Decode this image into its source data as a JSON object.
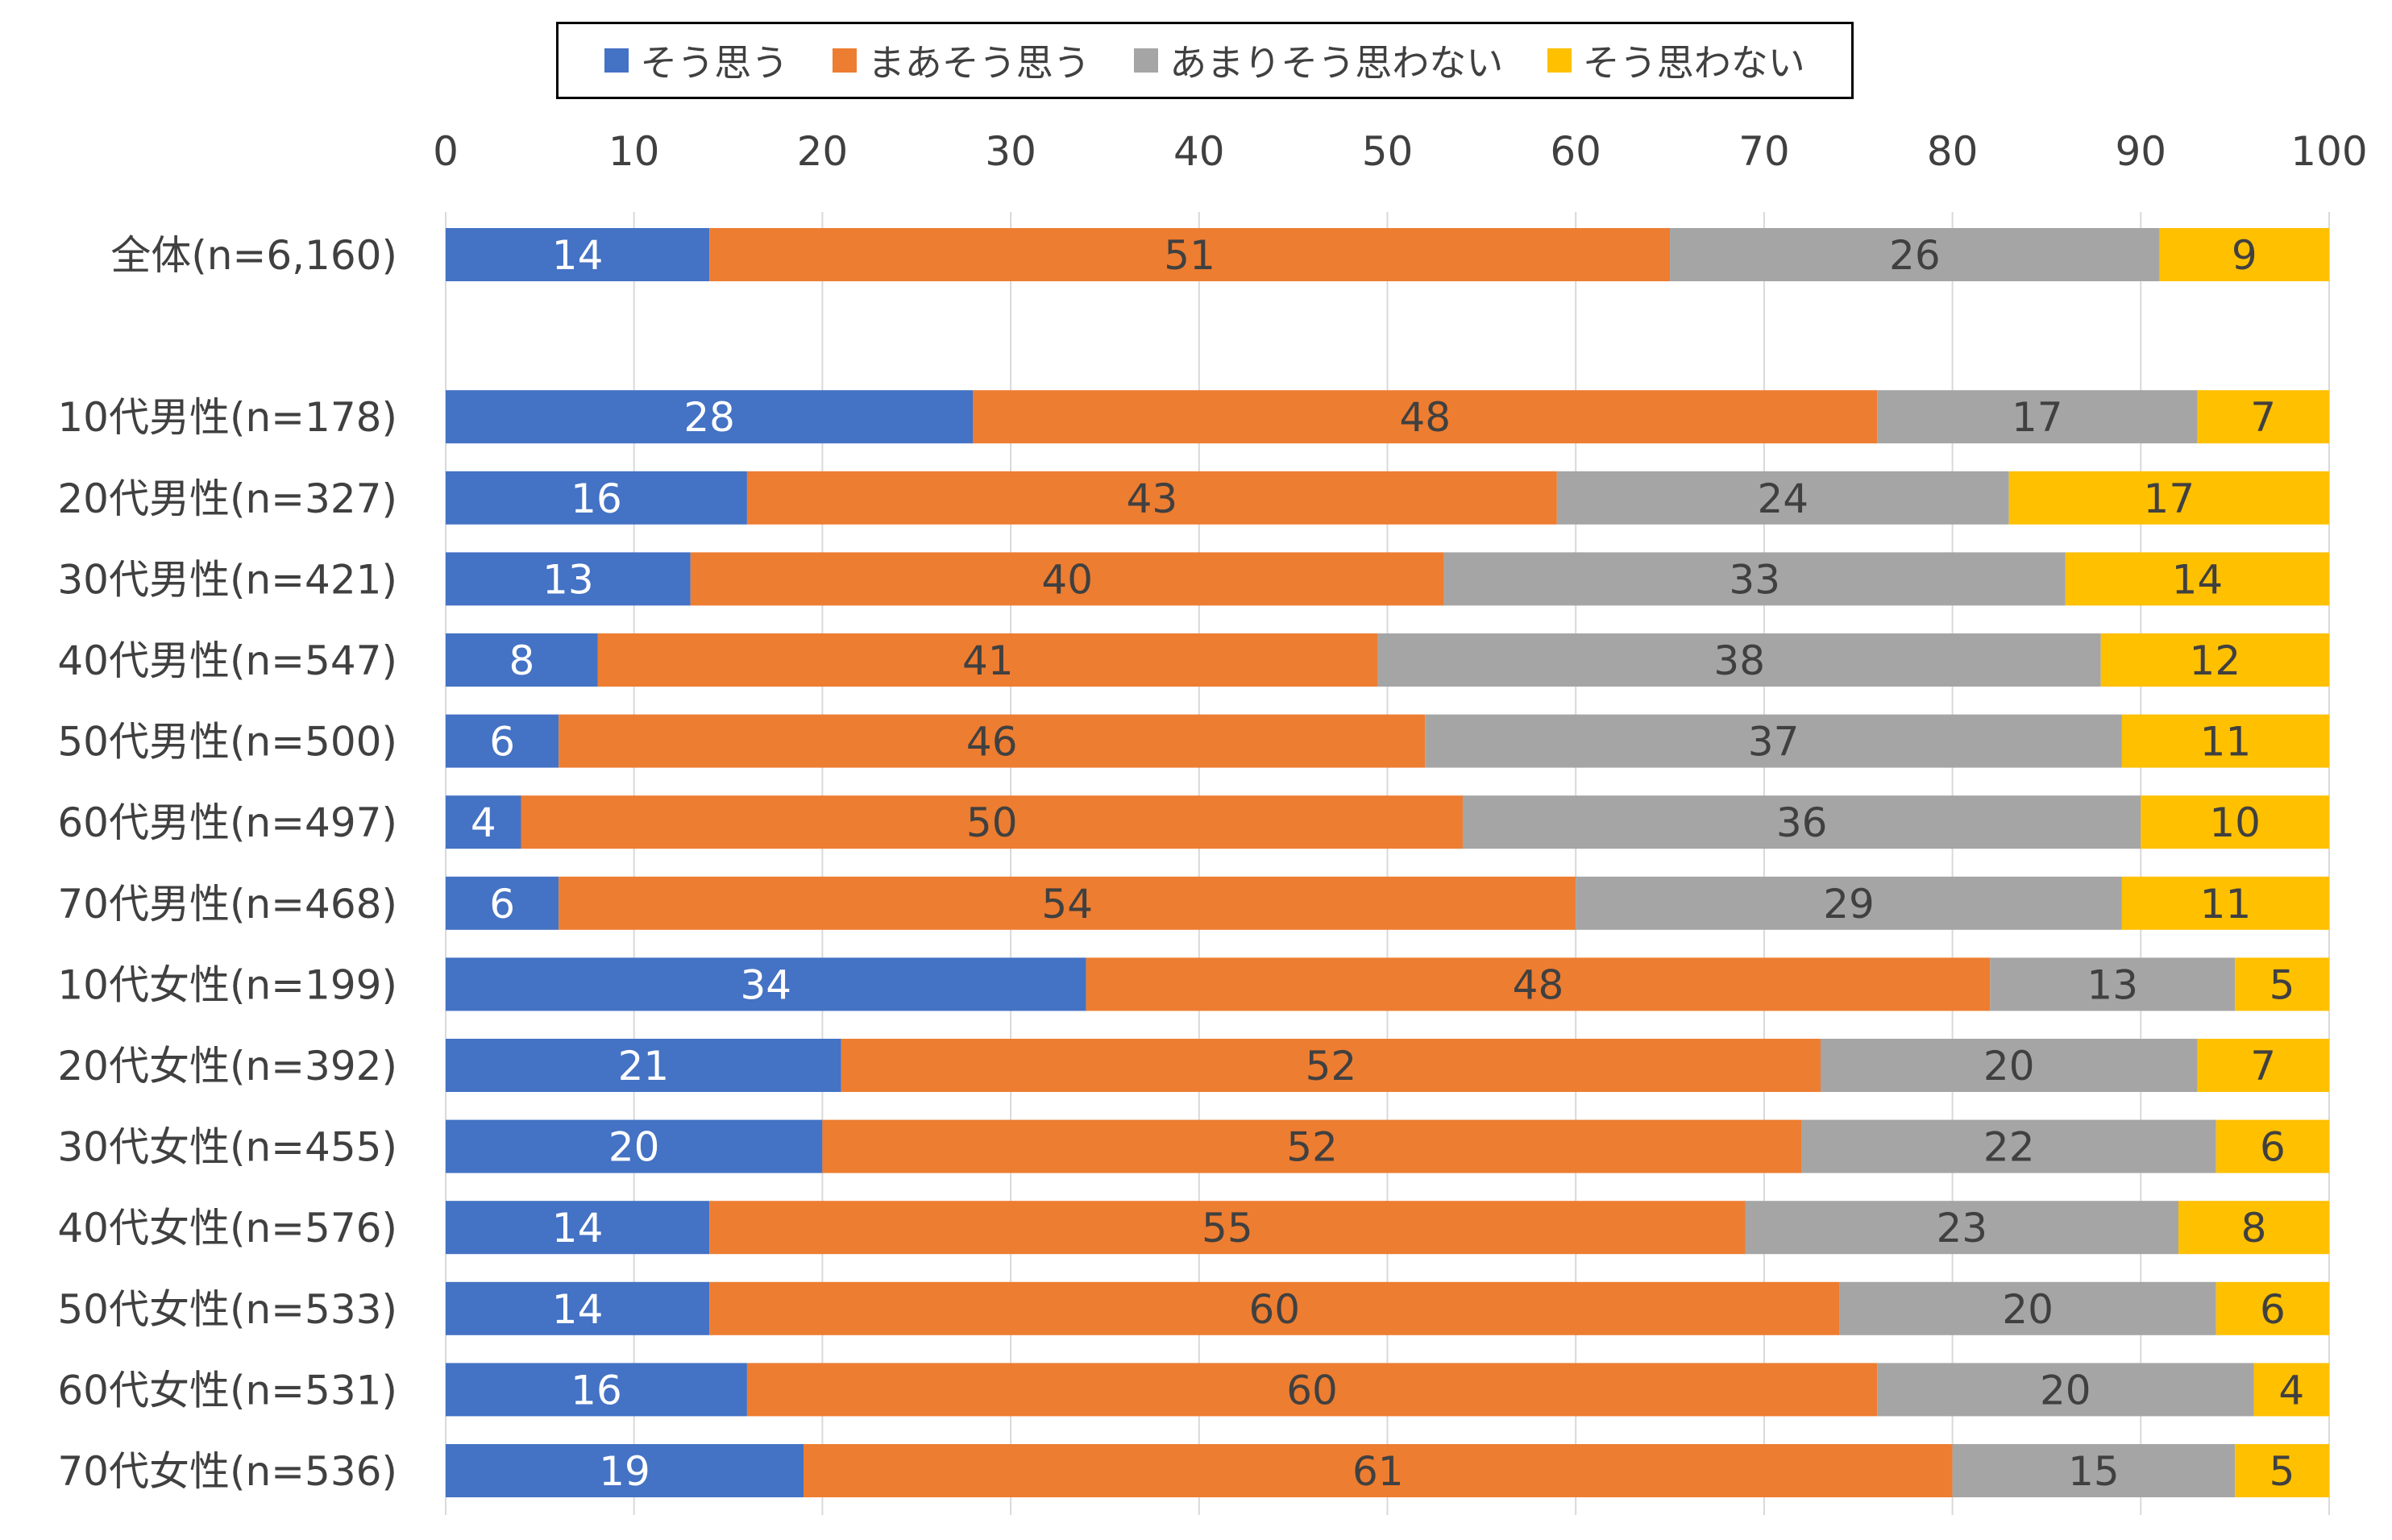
{
  "chart_data": {
    "type": "bar",
    "orientation": "horizontal",
    "stacked": true,
    "title": "",
    "xlabel": "",
    "ylabel": "",
    "xlim": [
      0,
      100
    ],
    "x_ticks": [
      "0",
      "10",
      "20",
      "30",
      "40",
      "50",
      "60",
      "70",
      "80",
      "90",
      "100"
    ],
    "grid": true,
    "legend_position": "top",
    "categories": [
      "全体(n=6,160)",
      "10代男性(n=178)",
      "20代男性(n=327)",
      "30代男性(n=421)",
      "40代男性(n=547)",
      "50代男性(n=500)",
      "60代男性(n=497)",
      "70代男性(n=468)",
      "10代女性(n=199)",
      "20代女性(n=392)",
      "30代女性(n=455)",
      "40代女性(n=576)",
      "50代女性(n=533)",
      "60代女性(n=531)",
      "70代女性(n=536)"
    ],
    "series": [
      {
        "name": "そう思う",
        "color": "#4472C4",
        "label_color": "#ffffff",
        "values": [
          14,
          28,
          16,
          13,
          8,
          6,
          4,
          6,
          34,
          21,
          20,
          14,
          14,
          16,
          19
        ]
      },
      {
        "name": "まあそう思う",
        "color": "#ED7D31",
        "label_color": "#404040",
        "values": [
          51,
          48,
          43,
          40,
          41,
          46,
          50,
          54,
          48,
          52,
          52,
          55,
          60,
          60,
          61
        ]
      },
      {
        "name": "あまりそう思わない",
        "color": "#A5A5A5",
        "label_color": "#404040",
        "values": [
          26,
          17,
          24,
          33,
          38,
          37,
          36,
          29,
          13,
          20,
          22,
          23,
          20,
          20,
          15
        ]
      },
      {
        "name": "そう思わない",
        "color": "#FFC000",
        "label_color": "#404040",
        "values": [
          9,
          7,
          17,
          14,
          12,
          11,
          10,
          11,
          5,
          7,
          6,
          8,
          6,
          4,
          5
        ]
      }
    ]
  }
}
